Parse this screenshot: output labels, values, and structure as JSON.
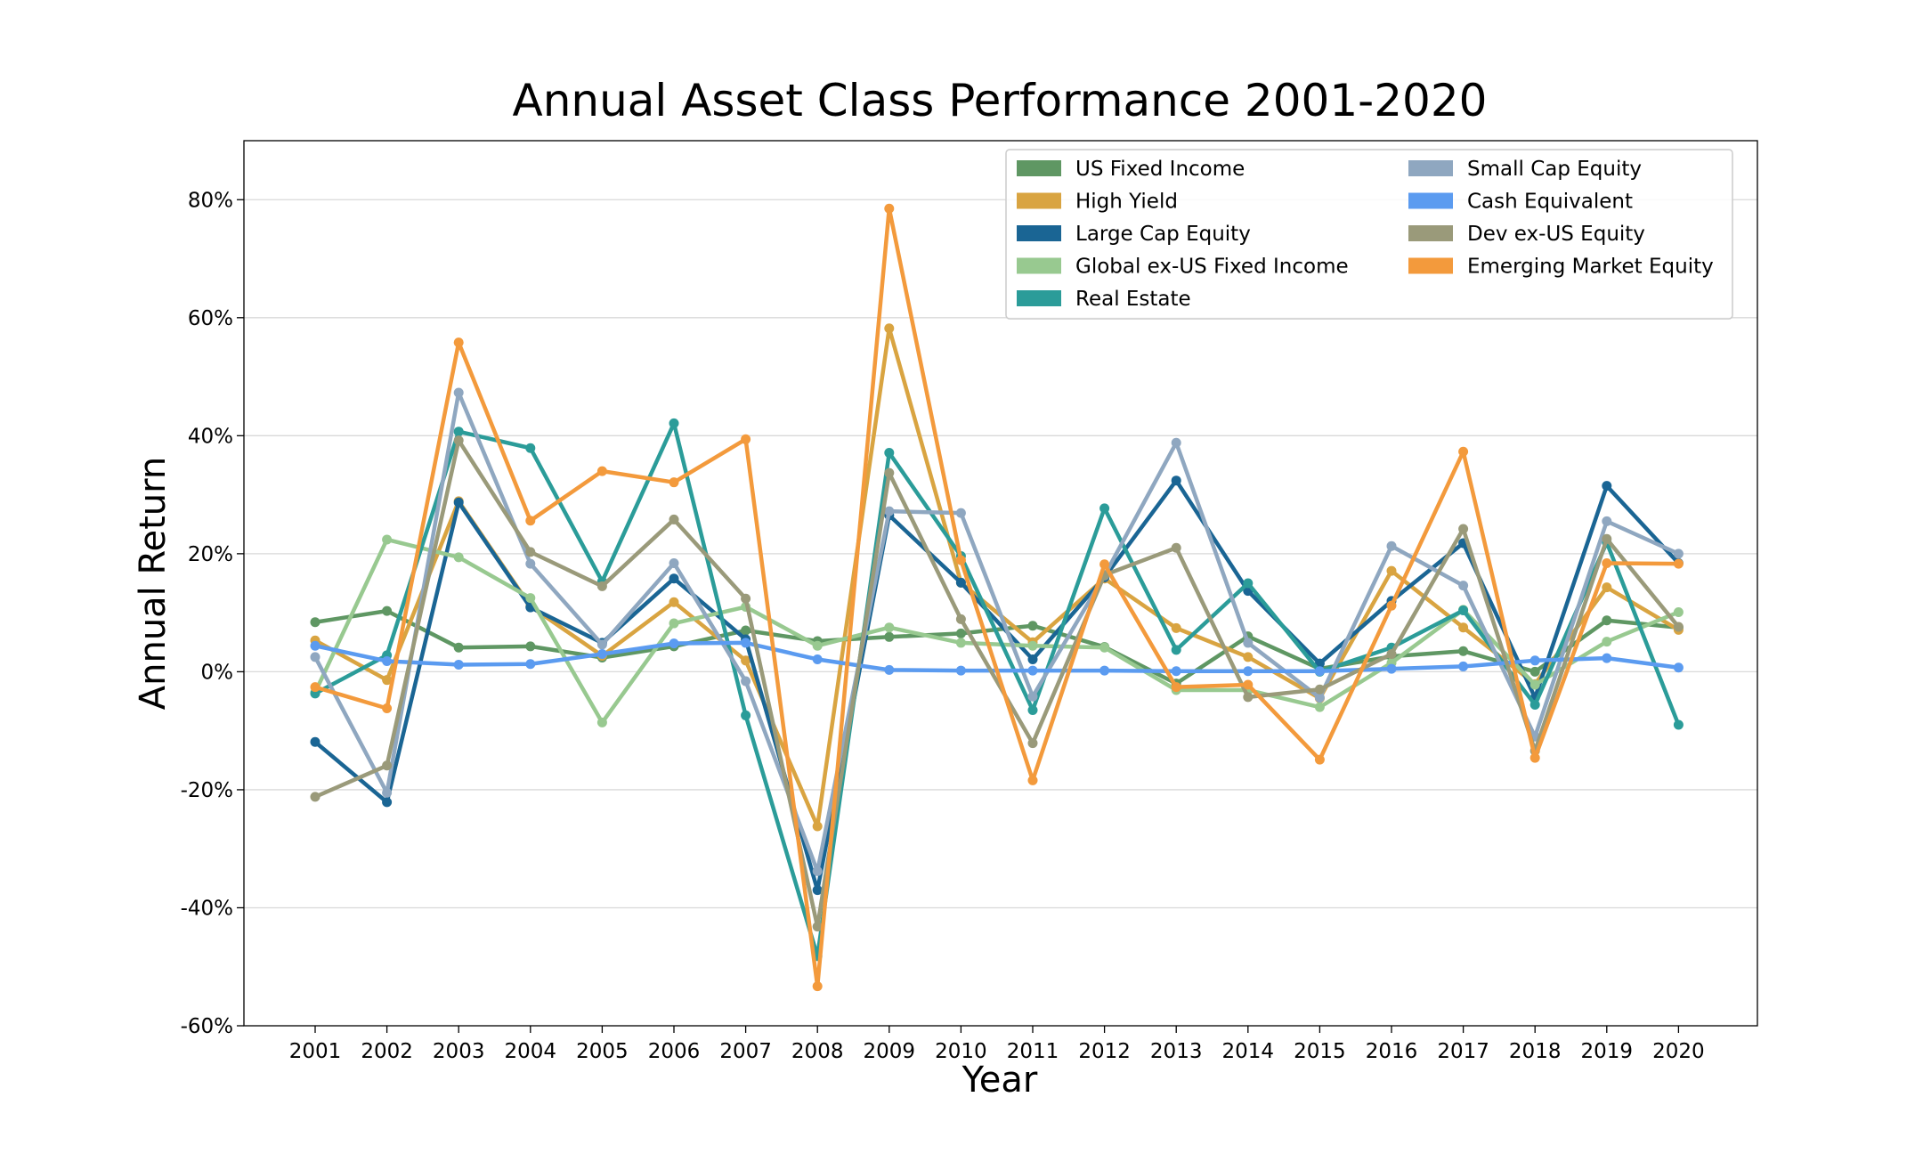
{
  "chart_data": {
    "type": "line",
    "title": "Annual Asset Class Performance 2001-2020",
    "xlabel": "Year",
    "ylabel": "Annual Return",
    "ylim": [
      -60,
      90
    ],
    "yticks": [
      -60,
      -40,
      -20,
      0,
      20,
      40,
      60,
      80
    ],
    "ytick_labels": [
      "-60%",
      "-40%",
      "-20%",
      "0%",
      "20%",
      "40%",
      "60%",
      "80%"
    ],
    "grid": "horizontal",
    "legend_position": "top-right",
    "x": [
      "2001",
      "2002",
      "2003",
      "2004",
      "2005",
      "2006",
      "2007",
      "2008",
      "2009",
      "2010",
      "2011",
      "2012",
      "2013",
      "2014",
      "2015",
      "2016",
      "2017",
      "2018",
      "2019",
      "2020"
    ],
    "series": [
      {
        "name": "US Fixed Income",
        "color": "#5f9763",
        "values": [
          8.4,
          10.3,
          4.1,
          4.3,
          2.4,
          4.3,
          7.0,
          5.2,
          5.9,
          6.5,
          7.8,
          4.2,
          -2.0,
          6.0,
          0.5,
          2.6,
          3.5,
          0.0,
          8.7,
          7.5
        ]
      },
      {
        "name": "High Yield",
        "color": "#d9a441",
        "values": [
          5.3,
          -1.4,
          28.9,
          11.1,
          2.7,
          11.8,
          1.9,
          -26.2,
          58.2,
          15.1,
          5.0,
          15.8,
          7.4,
          2.5,
          -4.5,
          17.1,
          7.5,
          -2.1,
          14.3,
          7.1
        ]
      },
      {
        "name": "Large Cap Equity",
        "color": "#1a6594",
        "values": [
          -11.9,
          -22.1,
          28.7,
          10.9,
          4.9,
          15.8,
          5.5,
          -37.0,
          26.5,
          15.1,
          2.1,
          16.0,
          32.4,
          13.7,
          1.4,
          12.0,
          21.8,
          -4.4,
          31.5,
          18.4
        ]
      },
      {
        "name": "Global ex-US Fixed Income",
        "color": "#98c990",
        "values": [
          -3.5,
          22.4,
          19.4,
          12.5,
          -8.6,
          8.2,
          11.0,
          4.4,
          7.5,
          4.9,
          4.4,
          4.1,
          -3.1,
          -3.1,
          -6.0,
          1.5,
          10.5,
          -2.2,
          5.1,
          10.1
        ]
      },
      {
        "name": "Real Estate",
        "color": "#2b9c99",
        "values": [
          -3.7,
          2.8,
          40.7,
          37.9,
          15.3,
          42.1,
          -7.4,
          -48.2,
          37.1,
          19.6,
          -6.5,
          27.7,
          3.7,
          15.0,
          0.0,
          4.1,
          10.4,
          -5.6,
          21.9,
          -9.0
        ]
      },
      {
        "name": "Small Cap Equity",
        "color": "#8fa7c0",
        "values": [
          2.5,
          -20.5,
          47.3,
          18.3,
          4.6,
          18.4,
          -1.6,
          -33.8,
          27.2,
          26.9,
          -4.2,
          16.3,
          38.8,
          4.9,
          -4.4,
          21.3,
          14.6,
          -11.0,
          25.5,
          20.0
        ]
      },
      {
        "name": "Cash Equivalent",
        "color": "#5b9bf0",
        "values": [
          4.4,
          1.8,
          1.2,
          1.3,
          3.0,
          4.8,
          4.9,
          2.1,
          0.3,
          0.2,
          0.2,
          0.2,
          0.1,
          0.1,
          0.1,
          0.5,
          0.9,
          1.9,
          2.3,
          0.7
        ]
      },
      {
        "name": "Dev ex-US Equity",
        "color": "#9a9a7a",
        "values": [
          -21.2,
          -15.9,
          39.2,
          20.3,
          14.5,
          25.8,
          12.4,
          -43.2,
          33.7,
          8.9,
          -12.1,
          16.4,
          21.0,
          -4.3,
          -3.0,
          3.0,
          24.2,
          -13.4,
          22.5,
          7.6
        ]
      },
      {
        "name": "Emerging Market Equity",
        "color": "#f39a3c",
        "values": [
          -2.6,
          -6.2,
          55.8,
          25.6,
          34.0,
          32.1,
          39.4,
          -53.3,
          78.5,
          18.9,
          -18.4,
          18.2,
          -2.6,
          -2.2,
          -14.9,
          11.2,
          37.3,
          -14.6,
          18.4,
          18.3
        ]
      }
    ]
  }
}
